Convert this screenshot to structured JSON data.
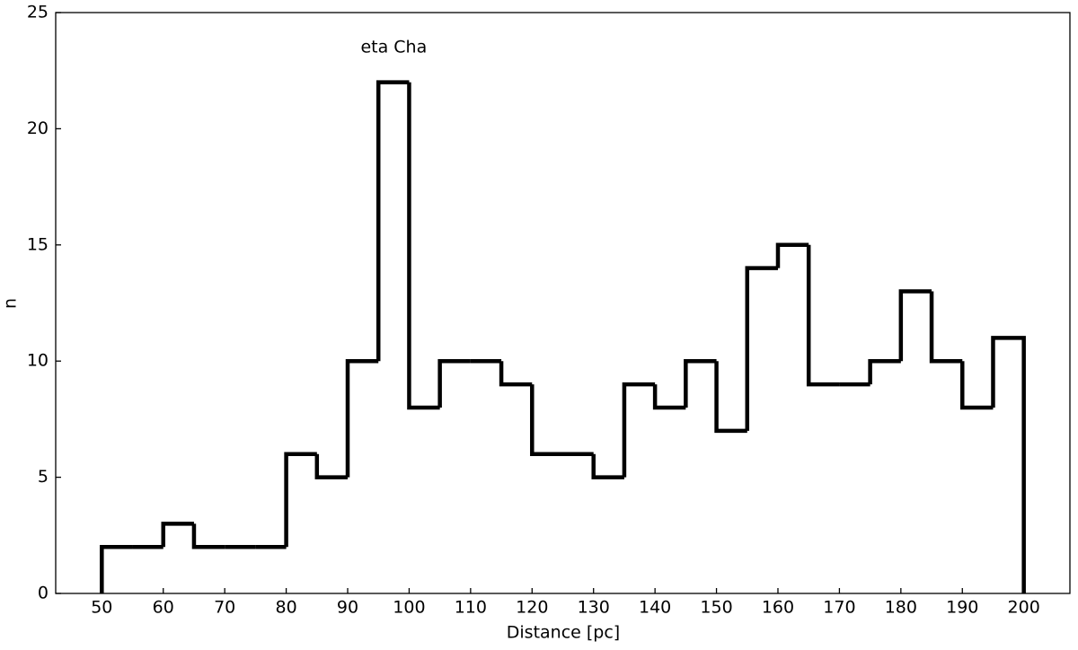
{
  "chart_data": {
    "type": "histogram",
    "annotation": "eta Cha",
    "annotation_x": 97.5,
    "annotation_y": 23.5,
    "xlabel": "Distance [pc]",
    "ylabel": "n",
    "bins": [
      50,
      55,
      60,
      65,
      70,
      75,
      80,
      85,
      90,
      95,
      100,
      105,
      110,
      115,
      120,
      125,
      130,
      135,
      140,
      145,
      150,
      155,
      160,
      165,
      170,
      175,
      180,
      185,
      190,
      195,
      200
    ],
    "counts": [
      2,
      2,
      3,
      2,
      2,
      2,
      6,
      5,
      10,
      22,
      8,
      10,
      10,
      9,
      6,
      6,
      5,
      9,
      8,
      10,
      7,
      14,
      15,
      9,
      9,
      10,
      13,
      10,
      8,
      11
    ],
    "color": "#000000",
    "xlim": [
      42.5,
      207.5
    ],
    "ylim": [
      0,
      25
    ],
    "xticks": [
      50,
      60,
      70,
      80,
      90,
      100,
      110,
      120,
      130,
      140,
      150,
      160,
      170,
      180,
      190,
      200
    ],
    "yticks": [
      0,
      5,
      10,
      15,
      20,
      25
    ]
  }
}
